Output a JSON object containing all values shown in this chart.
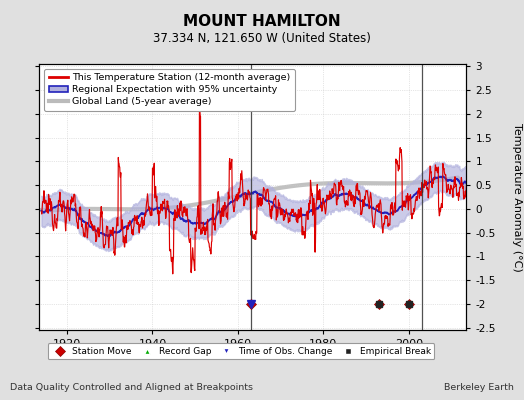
{
  "title": "MOUNT HAMILTON",
  "subtitle": "37.334 N, 121.650 W (United States)",
  "ylabel": "Temperature Anomaly (°C)",
  "xlabel_note": "Data Quality Controlled and Aligned at Breakpoints",
  "credit": "Berkeley Earth",
  "year_start": 1913.5,
  "year_end": 2013.5,
  "ylim": [
    -2.55,
    3.05
  ],
  "yticks": [
    -2.5,
    -2,
    -1.5,
    -1,
    -0.5,
    0,
    0.5,
    1,
    1.5,
    2,
    2.5,
    3
  ],
  "xticks": [
    1920,
    1940,
    1960,
    1980,
    2000
  ],
  "bg_color": "#e0e0e0",
  "plot_bg_color": "#ffffff",
  "station_color": "#dd0000",
  "regional_color": "#2222bb",
  "regional_fill_color": "#b0b0dd",
  "global_color": "#bbbbbb",
  "grid_color": "#cccccc",
  "vline_color": "#333333",
  "marker_station_move_color": "#cc0000",
  "marker_record_gap_color": "#00aa00",
  "marker_time_obs_color": "#2222bb",
  "marker_empirical_color": "#222222",
  "station_moves": [
    1963,
    1993,
    2000
  ],
  "time_obs_changes": [
    1963
  ],
  "empirical_breaks": [
    1993,
    2000
  ],
  "vlines": [
    1963,
    2003
  ]
}
